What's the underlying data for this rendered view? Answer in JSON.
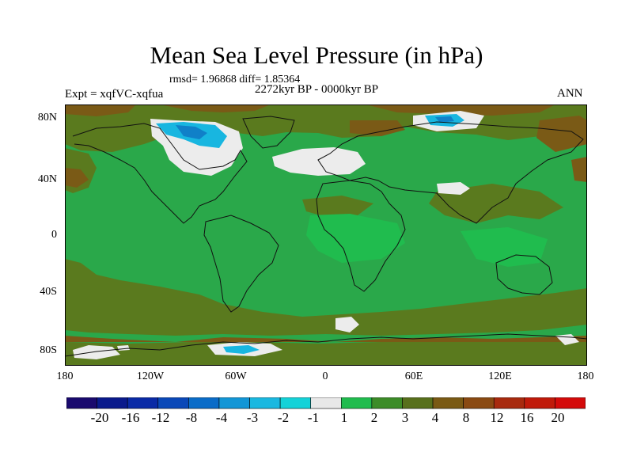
{
  "title": "Mean Sea Level Pressure (in hPa)",
  "stats": "rmsd= 1.96868 diff= 1.85364",
  "period": "2272kyr BP - 0000kyr BP",
  "experiment": "Expt = xqfVC-xqfua",
  "season": "ANN",
  "lat_labels": [
    "80N",
    "40N",
    "0",
    "40S",
    "80S"
  ],
  "lon_labels": [
    "180",
    "120W",
    "60W",
    "0",
    "60E",
    "120E",
    "180"
  ],
  "colorbar": {
    "labels": [
      "-20",
      "-16",
      "-12",
      "-8",
      "-4",
      "-3",
      "-2",
      "-1",
      "1",
      "2",
      "3",
      "4",
      "8",
      "12",
      "16",
      "20"
    ],
    "colors": [
      "#1a0a6e",
      "#0a1a8c",
      "#0a2aa6",
      "#0a48b8",
      "#0a6cc8",
      "#1296d6",
      "#1ab8e0",
      "#14d2d8",
      "#e8e8e8",
      "#20bc4e",
      "#3c8c28",
      "#58701c",
      "#7a5a14",
      "#8a4a12",
      "#a82a0e",
      "#c01a0a",
      "#d40a0a"
    ]
  },
  "palette": {
    "background": "#2aa84a",
    "olive": "#5a7a1e",
    "brown": "#7a5a16",
    "white": "#ececec",
    "light_blue": "#18b6e0",
    "blue": "#1080c8",
    "coast": "#111111"
  }
}
